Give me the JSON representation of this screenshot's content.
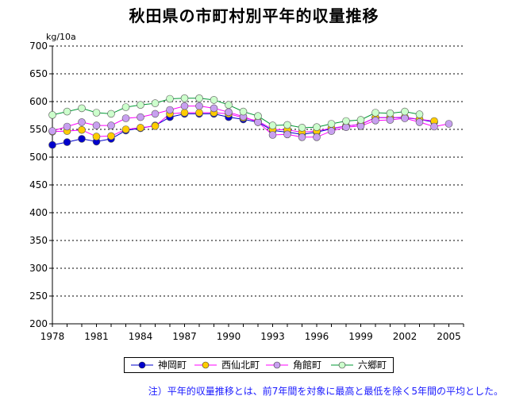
{
  "chart_data": {
    "type": "line",
    "title": "秋田県の市町村別平年的収量推移",
    "ylabel": "kg/10a",
    "xlabel": "",
    "ylim": [
      200,
      700
    ],
    "yticks": [
      200,
      250,
      300,
      350,
      400,
      450,
      500,
      550,
      600,
      650,
      700
    ],
    "xlim": [
      1978,
      2006
    ],
    "xticks": [
      1978,
      1981,
      1984,
      1987,
      1990,
      1993,
      1996,
      1999,
      2002,
      2005
    ],
    "grid": "horizontal-dotted",
    "legend_position": "bottom",
    "x": [
      1978,
      1979,
      1980,
      1981,
      1982,
      1983,
      1984,
      1985,
      1986,
      1987,
      1988,
      1989,
      1990,
      1991,
      1992,
      1993,
      1994,
      1995,
      1996,
      1997,
      1998,
      1999,
      2000,
      2001,
      2002,
      2003,
      2004,
      2005
    ],
    "series": [
      {
        "name": "神岡町",
        "color": "#0000cc",
        "marker": "#0000cc",
        "values": [
          522,
          527,
          533,
          528,
          533,
          548,
          552,
          557,
          572,
          578,
          578,
          578,
          572,
          568,
          563,
          548,
          545,
          541,
          545,
          551,
          556,
          559,
          571,
          571,
          571,
          568,
          563,
          null
        ]
      },
      {
        "name": "西仙北町",
        "color": "#ff00ff",
        "marker": "#ffcc00",
        "values": [
          546,
          547,
          549,
          537,
          538,
          550,
          553,
          556,
          578,
          580,
          580,
          580,
          578,
          571,
          565,
          550,
          549,
          545,
          547,
          552,
          556,
          559,
          571,
          571,
          572,
          568,
          565,
          null
        ]
      },
      {
        "name": "角館町",
        "color": "#ff00ff",
        "marker": "#c8a0f0",
        "values": [
          547,
          555,
          563,
          557,
          557,
          570,
          572,
          578,
          585,
          592,
          592,
          588,
          581,
          573,
          563,
          540,
          541,
          536,
          536,
          547,
          554,
          556,
          566,
          567,
          570,
          563,
          555,
          560
        ]
      },
      {
        "name": "六郷町",
        "color": "#009933",
        "marker": "#ccffcc",
        "values": [
          576,
          582,
          588,
          580,
          578,
          590,
          594,
          597,
          605,
          606,
          606,
          603,
          594,
          582,
          574,
          557,
          558,
          553,
          554,
          560,
          565,
          567,
          580,
          579,
          582,
          577,
          null,
          null
        ]
      }
    ]
  },
  "legend": {
    "items": [
      "神岡町",
      "西仙北町",
      "角館町",
      "六郷町"
    ]
  },
  "note": "注）平年的収量推移とは、前7年間を対象に最高と最低を除く5年間の平均とした。"
}
